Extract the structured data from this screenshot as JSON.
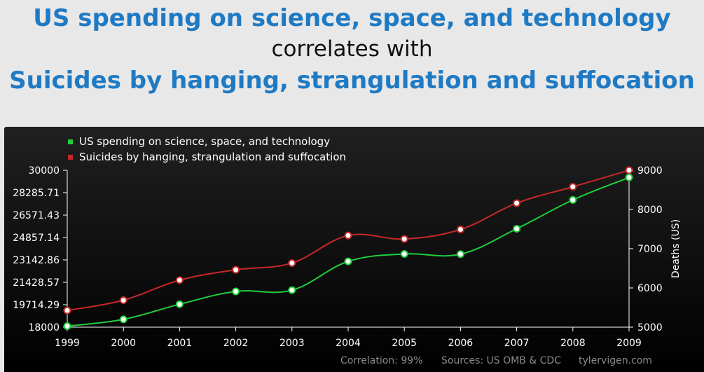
{
  "header": {
    "line1": "US spending on science, space, and technology",
    "line2": "correlates with",
    "line3": "Suicides by hanging, strangulation and suffocation"
  },
  "chart_data": {
    "type": "line",
    "x": [
      1999,
      2000,
      2001,
      2002,
      2003,
      2004,
      2005,
      2006,
      2007,
      2008,
      2009
    ],
    "series": [
      {
        "name": "US spending on science, space, and technology",
        "color": "#1fce3b",
        "axis": "left",
        "values": [
          18079,
          18594,
          19753,
          20734,
          20831,
          23029,
          23597,
          23584,
          25525,
          27731,
          29449
        ]
      },
      {
        "name": "Suicides by hanging, strangulation and suffocation",
        "color": "#c62828",
        "axis": "right",
        "values": [
          5427,
          5688,
          6198,
          6462,
          6635,
          7336,
          7248,
          7491,
          8161,
          8578,
          9000
        ]
      }
    ],
    "left_axis": {
      "ylim": [
        18000,
        30000
      ],
      "ticks": [
        "30000",
        "28285.71",
        "26571.43",
        "24857.14",
        "23142.86",
        "21428.57",
        "19714.29",
        "18000"
      ]
    },
    "right_axis": {
      "label": "Deaths (US)",
      "ylim": [
        5000,
        9000
      ],
      "ticks": [
        "9000",
        "8000",
        "7000",
        "6000",
        "5000"
      ]
    },
    "legend_position": "top-left",
    "footer": {
      "correlation": "Correlation: 99%",
      "sources": "Sources: US OMB & CDC",
      "site": "tylervigen.com"
    }
  }
}
